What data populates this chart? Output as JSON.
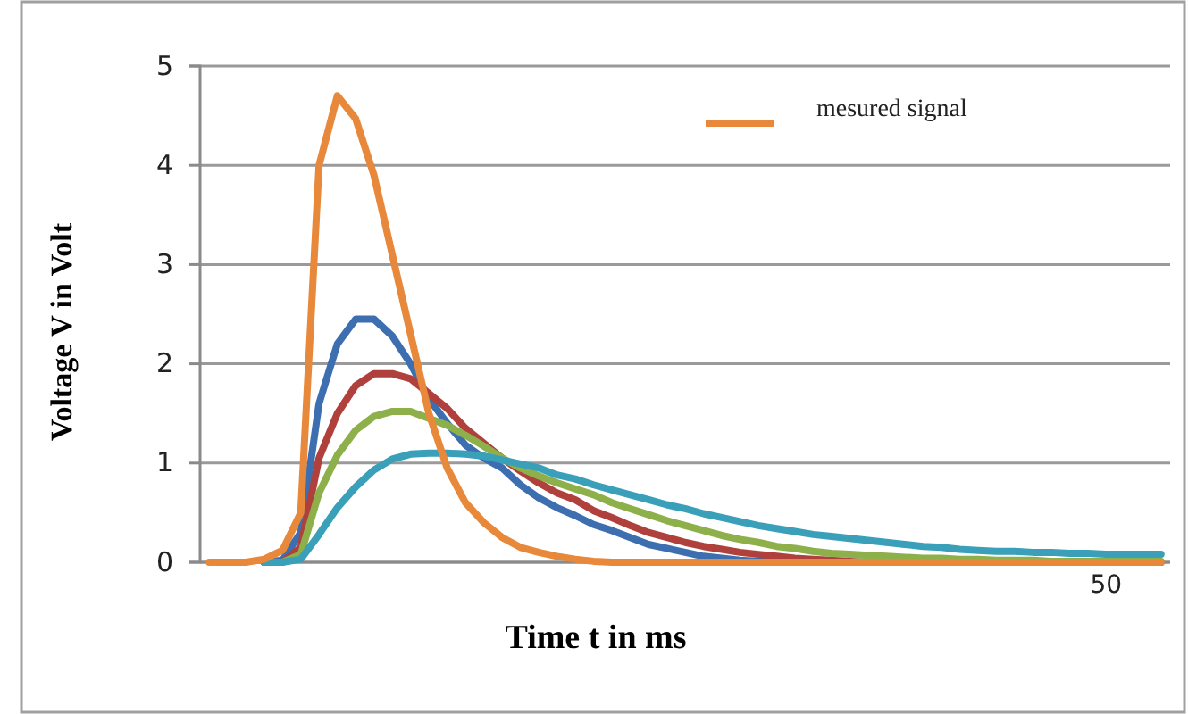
{
  "chart_data": {
    "type": "line",
    "xlabel": "Time t in ms",
    "ylabel": "Voltage V in Volt",
    "categories": [
      null,
      null,
      null,
      null,
      null,
      null,
      null,
      null,
      null,
      null,
      null,
      null,
      null,
      null,
      null,
      null,
      null,
      null,
      null,
      null,
      null,
      null,
      null,
      null,
      null,
      null,
      null,
      null,
      null,
      null,
      null,
      null,
      null,
      null,
      null,
      null,
      null,
      null,
      null,
      null,
      null,
      null,
      null,
      null,
      null,
      null,
      null,
      null,
      null,
      "50",
      null,
      null,
      null
    ],
    "ylim": [
      0,
      5
    ],
    "yticks": [
      0,
      1,
      2,
      3,
      4,
      5
    ],
    "grid": "y",
    "legend": "top right",
    "marker": "none",
    "line_style": "solid",
    "series": [
      {
        "color": "#3d6eb0",
        "values": [
          null,
          null,
          null,
          0,
          0.02,
          0.3,
          1.6,
          2.2,
          2.45,
          2.45,
          2.28,
          2.0,
          1.65,
          1.4,
          1.18,
          1.05,
          0.95,
          0.78,
          0.65,
          0.55,
          0.47,
          0.38,
          0.32,
          0.25,
          0.18,
          0.14,
          0.1,
          0.06,
          0.04,
          0.02,
          0.01,
          0.01,
          0,
          0,
          0,
          0,
          0,
          0,
          0,
          0,
          0,
          0,
          0,
          0,
          0,
          0,
          0,
          0,
          0,
          0,
          0,
          0,
          0
        ]
      },
      {
        "color": "#b0403c",
        "values": [
          null,
          null,
          null,
          0,
          0,
          0.15,
          1.05,
          1.5,
          1.78,
          1.9,
          1.9,
          1.85,
          1.7,
          1.55,
          1.35,
          1.2,
          1.05,
          0.92,
          0.8,
          0.7,
          0.63,
          0.52,
          0.45,
          0.37,
          0.3,
          0.25,
          0.2,
          0.16,
          0.13,
          0.1,
          0.08,
          0.06,
          0.04,
          0.03,
          0.02,
          0.01,
          0,
          0,
          0,
          0,
          0,
          0,
          0,
          0,
          0,
          0,
          0,
          0,
          0,
          0,
          0,
          0,
          0
        ]
      },
      {
        "color": "#8db04a",
        "values": [
          null,
          null,
          null,
          0,
          0,
          0.08,
          0.7,
          1.08,
          1.33,
          1.47,
          1.52,
          1.52,
          1.45,
          1.38,
          1.28,
          1.17,
          1.05,
          0.95,
          0.87,
          0.8,
          0.74,
          0.68,
          0.6,
          0.54,
          0.48,
          0.42,
          0.37,
          0.32,
          0.27,
          0.23,
          0.2,
          0.16,
          0.14,
          0.11,
          0.09,
          0.08,
          0.07,
          0.06,
          0.05,
          0.04,
          0.04,
          0.03,
          0.03,
          0.02,
          0.02,
          0.02,
          0.01,
          0.01,
          0.01,
          0.01,
          0.01,
          0.01,
          0.01
        ]
      },
      {
        "color": "#3a9fb8",
        "values": [
          null,
          null,
          null,
          0,
          0,
          0.03,
          0.28,
          0.55,
          0.76,
          0.93,
          1.04,
          1.09,
          1.1,
          1.1,
          1.09,
          1.07,
          1.03,
          0.99,
          0.95,
          0.88,
          0.84,
          0.78,
          0.73,
          0.68,
          0.63,
          0.58,
          0.54,
          0.49,
          0.45,
          0.41,
          0.37,
          0.34,
          0.31,
          0.28,
          0.26,
          0.24,
          0.22,
          0.2,
          0.18,
          0.16,
          0.15,
          0.13,
          0.12,
          0.11,
          0.11,
          0.1,
          0.1,
          0.09,
          0.09,
          0.08,
          0.08,
          0.08,
          0.08
        ]
      },
      {
        "name": "mesured signal",
        "color": "#e8883a",
        "values": [
          0,
          0,
          0,
          0.03,
          0.12,
          0.5,
          4.0,
          4.7,
          4.47,
          3.9,
          3.1,
          2.3,
          1.5,
          0.95,
          0.6,
          0.4,
          0.25,
          0.15,
          0.1,
          0.06,
          0.03,
          0.01,
          0,
          0,
          0,
          0,
          0,
          0,
          0,
          0,
          0,
          0,
          0,
          0,
          0,
          0,
          0,
          0,
          0,
          0,
          0,
          0,
          0,
          0,
          0,
          0,
          0,
          0,
          0,
          0,
          0,
          0,
          0
        ]
      }
    ]
  }
}
